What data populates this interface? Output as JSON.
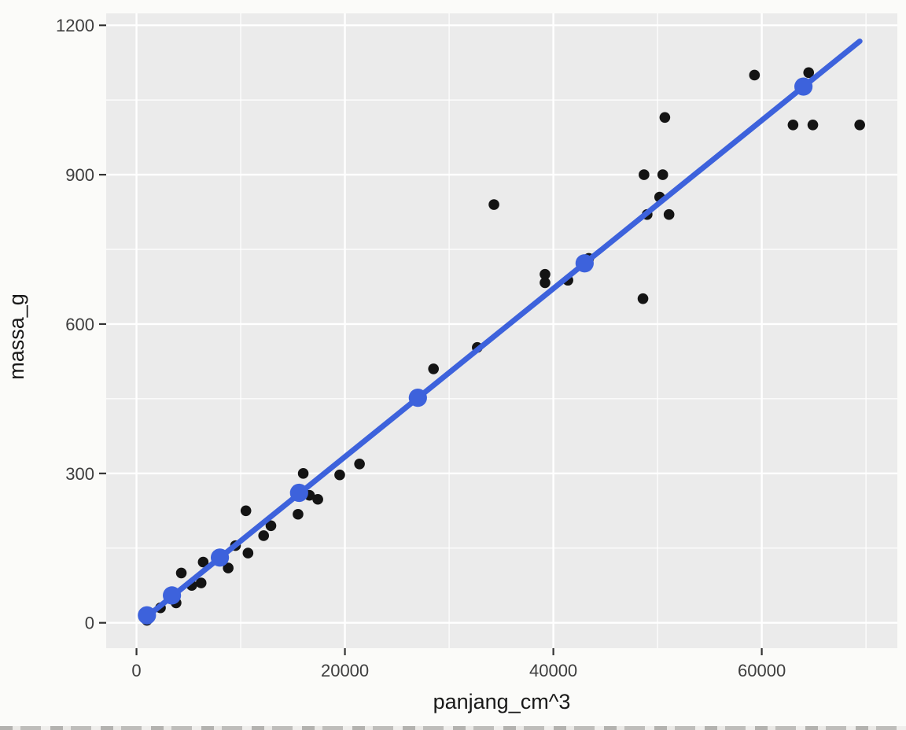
{
  "style": {
    "page_bg": "#fbfbf9",
    "panel_bg": "#ebebeb",
    "grid_color": "#ffffff",
    "tick_text_color": "#3e3e3e",
    "axis_title_color": "#191919",
    "tick_mark_color": "#333333",
    "observation_color": "#141414",
    "model_color": "#3d62dc"
  },
  "chart_data": {
    "type": "scatter",
    "title": "",
    "xlabel": "panjang_cm^3",
    "ylabel": "massa_g",
    "xlim": [
      -2910,
      73010
    ],
    "ylim": [
      -51,
      1224
    ],
    "x_major_ticks": [
      0,
      20000,
      40000,
      60000
    ],
    "x_minor_gridlines": [
      10000,
      30000,
      50000,
      70000
    ],
    "y_major_ticks": [
      0,
      300,
      600,
      900,
      1200
    ],
    "y_minor_gridlines": [
      150,
      450,
      750,
      1050
    ],
    "grid": true,
    "legend_position": "none",
    "series": [
      {
        "name": "observations",
        "type": "scatter",
        "color": "#141414",
        "size": 6.8,
        "points": [
          [
            1000,
            5
          ],
          [
            2300,
            30
          ],
          [
            3800,
            40
          ],
          [
            4300,
            100
          ],
          [
            5300,
            75
          ],
          [
            6200,
            80
          ],
          [
            6400,
            122
          ],
          [
            8800,
            110
          ],
          [
            9500,
            155
          ],
          [
            10500,
            225
          ],
          [
            10700,
            140
          ],
          [
            12200,
            175
          ],
          [
            12900,
            195
          ],
          [
            15500,
            218
          ],
          [
            16000,
            300
          ],
          [
            16600,
            256
          ],
          [
            17400,
            248
          ],
          [
            19500,
            297
          ],
          [
            21400,
            319
          ],
          [
            28500,
            510
          ],
          [
            32700,
            553
          ],
          [
            34300,
            840
          ],
          [
            39200,
            700
          ],
          [
            39200,
            683
          ],
          [
            41400,
            688
          ],
          [
            43400,
            732
          ],
          [
            48600,
            651
          ],
          [
            48700,
            900
          ],
          [
            50500,
            900
          ],
          [
            49000,
            820
          ],
          [
            51100,
            820
          ],
          [
            50200,
            855
          ],
          [
            50700,
            1015
          ],
          [
            59300,
            1100
          ],
          [
            63000,
            1000
          ],
          [
            64500,
            1105
          ],
          [
            64900,
            1000
          ],
          [
            69400,
            1000
          ]
        ]
      },
      {
        "name": "regression-line",
        "type": "line",
        "color": "#3d62dc",
        "width": 7,
        "points": [
          [
            800,
            9
          ],
          [
            69400,
            1168
          ]
        ]
      },
      {
        "name": "model-fit",
        "type": "scatter",
        "color": "#3d62dc",
        "size": 11.6,
        "points": [
          [
            1000,
            15
          ],
          [
            3400,
            55
          ],
          [
            8000,
            131
          ],
          [
            15600,
            261
          ],
          [
            27000,
            452
          ],
          [
            43000,
            722
          ],
          [
            64000,
            1077
          ]
        ]
      }
    ]
  }
}
